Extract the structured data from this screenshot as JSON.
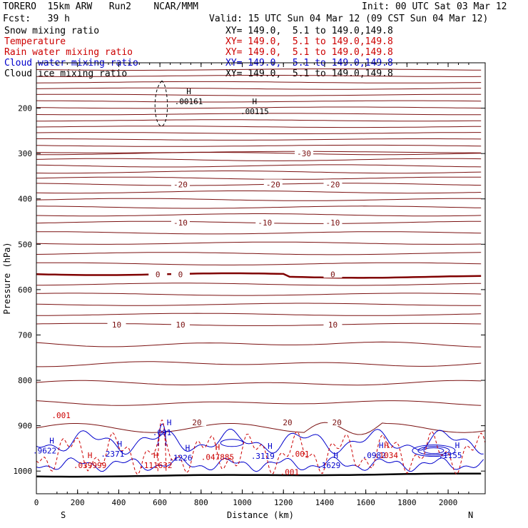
{
  "header": {
    "model": "TORERO  15km ARW   Run2    NCAR/MMM",
    "init": "Init: 00 UTC Sat 03 Mar 12",
    "fcst": "Fcst:   39 h",
    "valid": "Valid: 15 UTC Sun 04 Mar 12 (09 CST Sun 04 Mar 12)"
  },
  "legend": [
    {
      "label": "Snow mixing ratio",
      "xy": "XY= 149.0,  5.1 to 149.0,149.8",
      "color": "#000000"
    },
    {
      "label": "Temperature",
      "xy": "XY= 149.0,  5.1 to 149.0,149.8",
      "color": "#cc0000"
    },
    {
      "label": "Rain water mixing ratio",
      "xy": "XY= 149.0,  5.1 to 149.0,149.8",
      "color": "#cc0000"
    },
    {
      "label": "Cloud water mixing ratio",
      "xy": "XY= 149.0,  5.1 to 149.0,149.8",
      "color": "#0000cc"
    },
    {
      "label": "Cloud ice mixing ratio",
      "xy": "XY= 149.0,  5.1 to 149.0,149.8",
      "color": "#000000"
    }
  ],
  "chart_data": {
    "type": "contour",
    "xlabel": "Distance (km)",
    "ylabel": "Pressure (hPa)",
    "xlim": [
      0,
      2180
    ],
    "ylim": [
      1050,
      100
    ],
    "x_ticks": [
      0,
      200,
      400,
      600,
      800,
      1000,
      1200,
      1400,
      1600,
      1800,
      2000
    ],
    "y_ticks": [
      200,
      300,
      400,
      500,
      600,
      700,
      800,
      900,
      1000
    ],
    "x_end_labels": {
      "left": "S",
      "right": "N"
    },
    "temperature_contours": [
      {
        "level": -30,
        "pressure": 300,
        "labels_at_km": [
          1300
        ]
      },
      {
        "level": -20,
        "pressure": 368,
        "labels_at_km": [
          700,
          1150,
          1440
        ]
      },
      {
        "level": -10,
        "pressure": 452,
        "labels_at_km": [
          700,
          1110,
          1440
        ]
      },
      {
        "level": 0,
        "pressure": 566,
        "labels_at_km": [
          590,
          700,
          1440
        ]
      },
      {
        "level": 10,
        "pressure": 677,
        "labels_at_km": [
          390,
          700,
          1440
        ]
      },
      {
        "level": 20,
        "pressure": 893,
        "labels_at_km": [
          780,
          1220,
          1460
        ]
      }
    ],
    "snow_maxima": [
      {
        "label": "H",
        "value": ".00161",
        "km": 740,
        "pressure": 188
      },
      {
        "label": "H",
        "value": ".00115",
        "km": 1060,
        "pressure": 210
      }
    ],
    "cloud_water_maxima": [
      {
        "label": "H",
        "value": ".9622",
        "km": 40,
        "pressure": 958
      },
      {
        "label": "H",
        "value": ".2371",
        "km": 370,
        "pressure": 965
      },
      {
        "label": "H",
        "value": ".001",
        "km": 610,
        "pressure": 918
      },
      {
        "label": "H",
        "value": ".1226",
        "km": 700,
        "pressure": 974
      },
      {
        "label": "H",
        "value": ".3119",
        "km": 1100,
        "pressure": 970
      },
      {
        "label": "H",
        "value": ".1629",
        "km": 1420,
        "pressure": 990
      },
      {
        "label": "H",
        "value": ".0982",
        "km": 1640,
        "pressure": 968
      },
      {
        "label": "H",
        "value": ".1155",
        "km": 2010,
        "pressure": 968
      }
    ],
    "rain_maxima": [
      {
        "label": "",
        "value": ".001",
        "km": 120,
        "pressure": 880
      },
      {
        "label": "H",
        "value": ".039999",
        "km": 260,
        "pressure": 990
      },
      {
        "label": "H",
        "value": ".111632",
        "km": 580,
        "pressure": 990
      },
      {
        "label": "H",
        "value": ".047885",
        "km": 880,
        "pressure": 972
      },
      {
        "label": "",
        "value": ".001",
        "km": 1280,
        "pressure": 965
      },
      {
        "label": "",
        "value": ".001",
        "km": 1230,
        "pressure": 1005
      },
      {
        "label": "H",
        "value": ".1034",
        "km": 1700,
        "pressure": 968
      }
    ]
  }
}
